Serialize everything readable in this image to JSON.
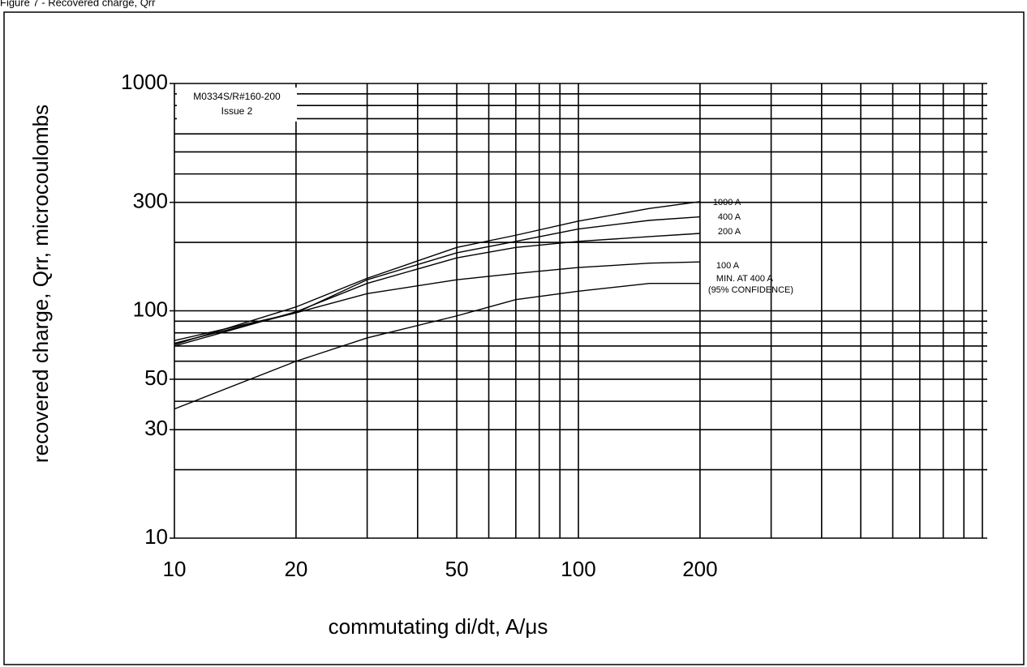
{
  "chart_data": {
    "type": "line",
    "title": "Figure 7 - Recovered charge, Qrr",
    "x_label": "commutating di/dt, A/μs",
    "y_label": "recovered charge, Qrr, microcoulombs",
    "annotations": [
      "M0334S/R#160-200",
      "Issue 2",
      "(95% CONFIDENCE)"
    ],
    "log_x": true,
    "log_y": true,
    "grid": true,
    "color": "#000000",
    "xlim": [
      10,
      1000
    ],
    "ylim": [
      10,
      1000
    ],
    "xticks": [
      10,
      20,
      50,
      100,
      200
    ],
    "yticks": [
      10,
      30,
      50,
      100,
      300,
      1000
    ],
    "xgrid": [
      10,
      20,
      30,
      40,
      50,
      60,
      70,
      80,
      90,
      100,
      200,
      300,
      400,
      500,
      600,
      700,
      800,
      900,
      1000
    ],
    "ygrid": [
      10,
      20,
      30,
      40,
      50,
      60,
      70,
      80,
      90,
      100,
      200,
      300,
      400,
      500,
      600,
      700,
      800,
      900,
      1000
    ],
    "x": [
      10,
      20,
      30,
      50,
      70,
      100,
      150,
      200
    ],
    "series": [
      {
        "name": "1000 A",
        "values": [
          71,
          104,
          139,
          190,
          215,
          248,
          282,
          302
        ]
      },
      {
        "name": "400 A",
        "values": [
          72,
          98,
          137,
          180,
          202,
          229,
          250,
          259
        ]
      },
      {
        "name": "200 A",
        "values": [
          70,
          99,
          132,
          171,
          190,
          202,
          212,
          219
        ]
      },
      {
        "name": "100 A",
        "values": [
          74,
          98,
          119,
          137,
          146,
          155,
          162,
          164
        ]
      },
      {
        "name": "MIN. AT 400 A",
        "values": [
          37,
          60,
          76,
          95,
          112,
          122,
          132,
          132
        ]
      }
    ]
  }
}
